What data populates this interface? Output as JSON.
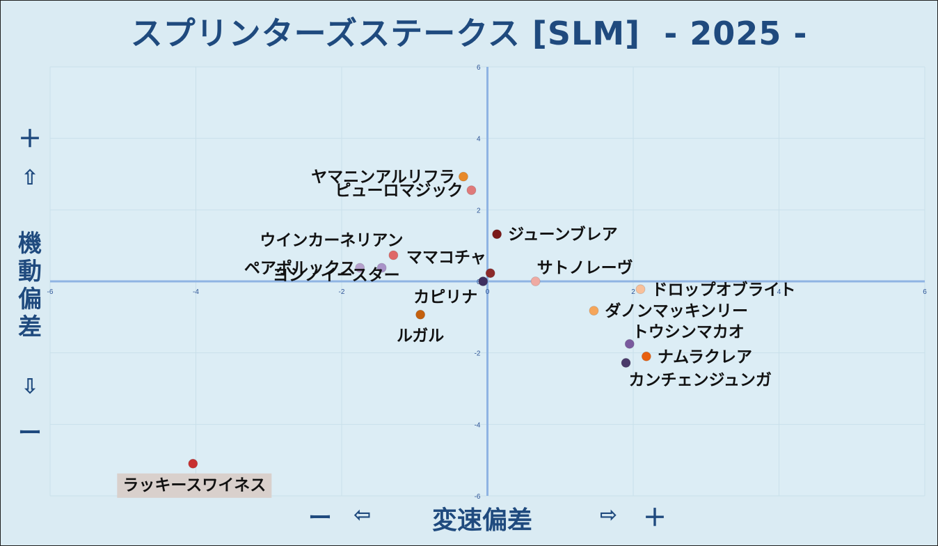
{
  "chart_data": {
    "type": "scatter",
    "title": "スプリンターズステークス [SLM]  - 2025 -",
    "xlabel": "変速偏差",
    "ylabel": "機動偏差",
    "x_minus": "ー",
    "x_left_arrow": "⇦",
    "x_right_arrow": "⇨",
    "x_plus": "＋",
    "y_plus": "＋",
    "y_up_arrow": "⇧",
    "y_down_arrow": "⇩",
    "y_minus": "ー",
    "xlim": [
      -6,
      6
    ],
    "ylim": [
      -6,
      6
    ],
    "x_ticks": [
      "-6",
      "-4",
      "-2",
      "0",
      "2",
      "4",
      "6"
    ],
    "y_ticks": [
      "6",
      "4",
      "2",
      "0",
      "-2",
      "-4",
      "-6"
    ],
    "grid": true,
    "points": [
      {
        "name": "ヤマニンアルリフラ",
        "x": -0.33,
        "y": 2.93,
        "color": "#e88a2a",
        "label_side": "left"
      },
      {
        "name": "ピューロマジック",
        "x": -0.22,
        "y": 2.55,
        "color": "#df7a7a",
        "label_side": "left"
      },
      {
        "name": "ジューンブレア",
        "x": 0.13,
        "y": 1.32,
        "color": "#7b1a1a",
        "label_side": "right"
      },
      {
        "name": "ウインカーネリアン",
        "x": -1.29,
        "y": 0.73,
        "color": "#df6868",
        "label_side": "above-left"
      },
      {
        "name": "ママコチャ",
        "x": 0.04,
        "y": 0.23,
        "color": "#8b2a2a",
        "label_side": "left-above"
      },
      {
        "name": "ペアポルックス",
        "x": -1.75,
        "y": 0.38,
        "color": "#b5a0cc",
        "label_side": "left"
      },
      {
        "name": "ヨシノイースター",
        "x": -1.45,
        "y": 0.38,
        "color": "#a992c8",
        "label_side": "below-left"
      },
      {
        "name": "カピリナ",
        "x": -0.06,
        "y": 0.0,
        "color": "#3f3060",
        "label_side": "below-left"
      },
      {
        "name": "サトノレーヴ",
        "x": 0.66,
        "y": 0.0,
        "color": "#efaaa2",
        "label_side": "above-right"
      },
      {
        "name": "ドロップオブライト",
        "x": 2.1,
        "y": -0.22,
        "color": "#f8c09a",
        "label_side": "right"
      },
      {
        "name": "ダノンマッキンリー",
        "x": 1.46,
        "y": -0.82,
        "color": "#f5a55a",
        "label_side": "right"
      },
      {
        "name": "ルガル",
        "x": -0.92,
        "y": -0.93,
        "color": "#c4600e",
        "label_side": "below"
      },
      {
        "name": "トウシンマカオ",
        "x": 1.95,
        "y": -1.75,
        "color": "#7a5a9e",
        "label_side": "above-right"
      },
      {
        "name": "ナムラクレア",
        "x": 2.18,
        "y": -2.1,
        "color": "#e86010",
        "label_side": "right"
      },
      {
        "name": "カンチェンジュンガ",
        "x": 1.9,
        "y": -2.28,
        "color": "#4a3a6a",
        "label_side": "below-right"
      },
      {
        "name": "ラッキースワイネス",
        "x": -4.04,
        "y": -5.1,
        "color": "#c83030",
        "label_side": "below",
        "highlight": true
      }
    ]
  }
}
